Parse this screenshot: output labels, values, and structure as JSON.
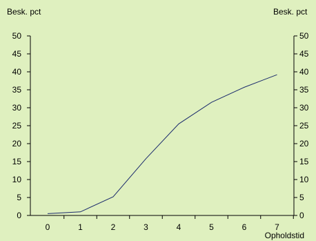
{
  "chart_data": {
    "type": "line",
    "title": "",
    "ylabel_left": "Besk. pct",
    "ylabel_right": "Besk. pct",
    "xlabel": "Opholdstid",
    "x": [
      0,
      1,
      2,
      3,
      4,
      5,
      6,
      7
    ],
    "xticks": [
      "0",
      "1",
      "2",
      "3",
      "4",
      "5",
      "6",
      "7"
    ],
    "ylim": [
      0,
      50
    ],
    "yticks": [
      "0",
      "5",
      "10",
      "15",
      "20",
      "25",
      "30",
      "35",
      "40",
      "45",
      "50"
    ],
    "grid": false,
    "legend": "none",
    "series": [
      {
        "values": [
          0.5,
          1.0,
          5.2,
          15.8,
          25.5,
          31.5,
          35.7,
          39.2
        ],
        "color": "#1a2a6c"
      }
    ]
  }
}
